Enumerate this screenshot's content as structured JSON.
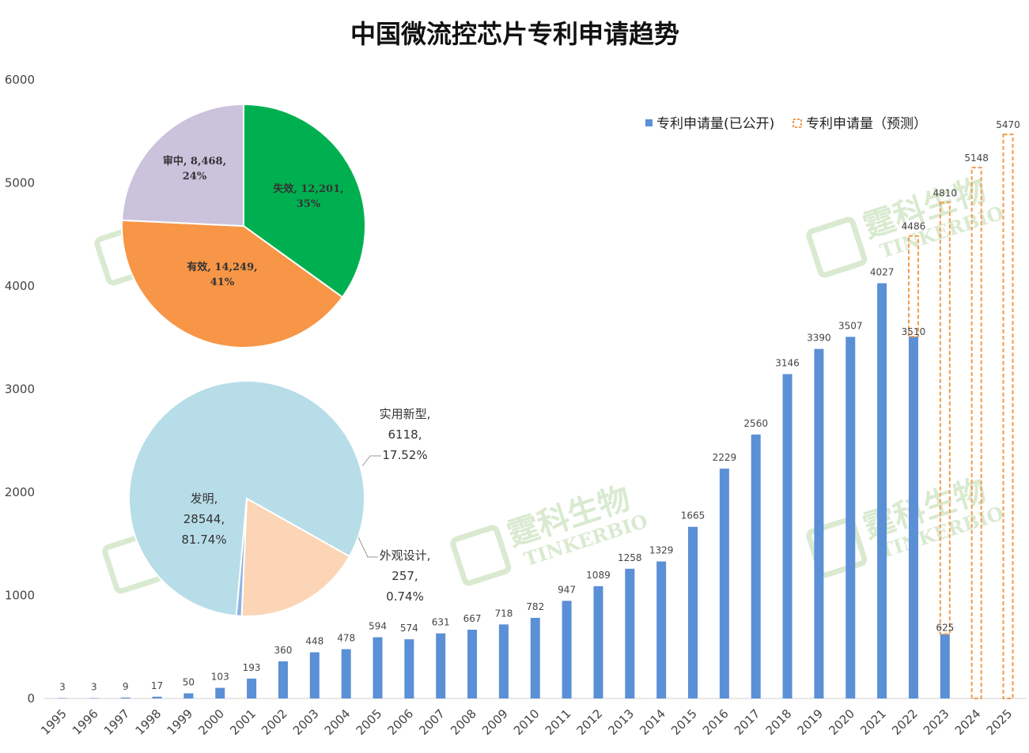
{
  "title": "中国微流控芯片专利申请趋势",
  "watermark": {
    "cn": "霆科生物",
    "en": "TINKERBIO"
  },
  "chart_data": [
    {
      "type": "bar",
      "title": "中国微流控芯片专利申请趋势",
      "ylim": [
        0,
        6000
      ],
      "yticks": [
        0,
        1000,
        2000,
        3000,
        4000,
        5000,
        6000
      ],
      "grid": false,
      "legend_position": "top-right",
      "categories": [
        "1995",
        "1996",
        "1997",
        "1998",
        "1999",
        "2000",
        "2001",
        "2002",
        "2003",
        "2004",
        "2005",
        "2006",
        "2007",
        "2008",
        "2009",
        "2010",
        "2011",
        "2012",
        "2013",
        "2014",
        "2015",
        "2016",
        "2017",
        "2018",
        "2019",
        "2020",
        "2021",
        "2022",
        "2023",
        "2024",
        "2025"
      ],
      "series": [
        {
          "name": "专利申请量(已公开)",
          "color": "#5b8fd6",
          "style": "solid",
          "values": [
            3,
            3,
            9,
            17,
            50,
            103,
            193,
            360,
            448,
            478,
            594,
            574,
            631,
            667,
            718,
            782,
            947,
            1089,
            1258,
            1329,
            1665,
            2229,
            2560,
            3146,
            3390,
            3507,
            4027,
            3510,
            625,
            null,
            null
          ]
        },
        {
          "name": "专利申请量（预测）",
          "color": "#f39a4a",
          "style": "dashed-outline",
          "values": [
            null,
            null,
            null,
            null,
            null,
            null,
            null,
            null,
            null,
            null,
            null,
            null,
            null,
            null,
            null,
            null,
            null,
            null,
            null,
            null,
            null,
            null,
            null,
            null,
            null,
            null,
            null,
            4486,
            4810,
            5148,
            5470
          ]
        }
      ]
    },
    {
      "type": "pie",
      "slices": [
        {
          "label": "失效",
          "value": 12201,
          "value_text": "12,201",
          "percent": "35%",
          "color": "#00b050"
        },
        {
          "label": "有效",
          "value": 14249,
          "value_text": "14,249",
          "percent": "41%",
          "color": "#f79646"
        },
        {
          "label": "审中",
          "value": 8468,
          "value_text": "8,468",
          "percent": "24%",
          "color": "#cbc2dc"
        }
      ]
    },
    {
      "type": "pie",
      "slices": [
        {
          "label": "发明",
          "value": 28544,
          "value_text": "28544",
          "percent": "81.74%",
          "color": "#b7dde8"
        },
        {
          "label": "实用新型",
          "value": 6118,
          "value_text": "6118",
          "percent": "17.52%",
          "color": "#fbd5b5"
        },
        {
          "label": "外观设计",
          "value": 257,
          "value_text": "257",
          "percent": "0.74%",
          "color": "#8eb4e3"
        }
      ]
    }
  ]
}
